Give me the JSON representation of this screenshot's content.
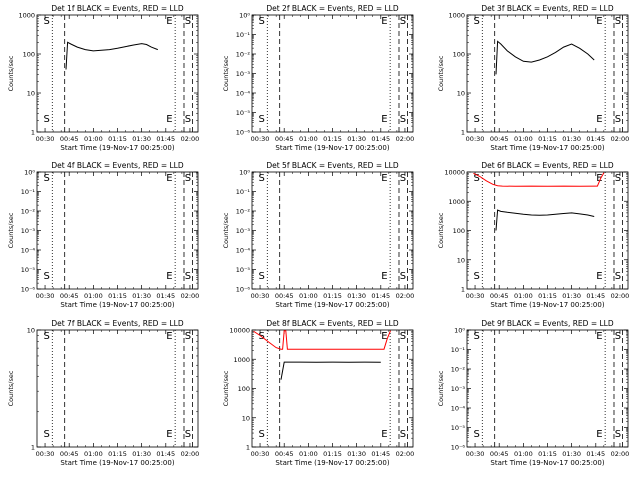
{
  "chart_data": [
    {
      "type": "line",
      "title": "Det 1f BLACK = Events, RED = LLD",
      "ylabel": "Counts/sec",
      "xlabel": "Start Time (19-Nov-17 00:25:00)",
      "x_tick_labels": [
        "00:30",
        "00:45",
        "01:00",
        "01:15",
        "01:30",
        "01:45",
        "02:00"
      ],
      "y_scale": "log",
      "ylim": [
        1,
        1000
      ],
      "y_tick_labels": [
        "1",
        "10",
        "100",
        "1000"
      ],
      "markers": [
        "S",
        "E",
        "S"
      ],
      "series": [
        {
          "color": "#000000",
          "x": [
            "00:43",
            "00:44",
            "00:46",
            "00:50",
            "00:55",
            "01:00",
            "01:05",
            "01:10",
            "01:15",
            "01:20",
            "01:25",
            "01:30",
            "01:33",
            "01:36",
            "01:40"
          ],
          "y": [
            40,
            200,
            180,
            150,
            130,
            120,
            125,
            130,
            140,
            155,
            170,
            185,
            175,
            150,
            130
          ]
        }
      ]
    },
    {
      "type": "line",
      "title": "Det 2f BLACK = Events, RED = LLD",
      "ylabel": "Counts/sec",
      "xlabel": "Start Time (19-Nov-17 00:25:00)",
      "x_tick_labels": [
        "00:30",
        "00:45",
        "01:00",
        "01:15",
        "01:30",
        "01:45",
        "02:00"
      ],
      "y_scale": "log",
      "ylim": [
        1e-06,
        1
      ],
      "y_tick_labels": [
        "10⁰",
        "10⁻¹",
        "10⁻²",
        "10⁻³",
        "10⁻⁴",
        "10⁻⁵",
        "10⁻⁶"
      ],
      "markers": [
        "S",
        "E",
        "S"
      ],
      "series": []
    },
    {
      "type": "line",
      "title": "Det 3f BLACK = Events, RED = LLD",
      "ylabel": "Counts/sec",
      "xlabel": "Start Time (19-Nov-17 00:25:00)",
      "x_tick_labels": [
        "00:30",
        "00:45",
        "01:00",
        "01:15",
        "01:30",
        "01:45",
        "02:00"
      ],
      "y_scale": "log",
      "ylim": [
        1,
        1000
      ],
      "y_tick_labels": [
        "1",
        "10",
        "100",
        "1000"
      ],
      "markers": [
        "S",
        "E",
        "S"
      ],
      "series": [
        {
          "color": "#000000",
          "x": [
            "00:43",
            "00:44",
            "00:46",
            "00:50",
            "00:55",
            "01:00",
            "01:05",
            "01:10",
            "01:15",
            "01:20",
            "01:25",
            "01:30",
            "01:35",
            "01:40",
            "01:44"
          ],
          "y": [
            30,
            210,
            180,
            120,
            85,
            65,
            62,
            70,
            85,
            110,
            150,
            180,
            140,
            100,
            70
          ]
        }
      ]
    },
    {
      "type": "line",
      "title": "Det 4f BLACK = Events, RED = LLD",
      "ylabel": "Counts/sec",
      "xlabel": "Start Time (19-Nov-17 00:25:00)",
      "x_tick_labels": [
        "00:30",
        "00:45",
        "01:00",
        "01:15",
        "01:30",
        "01:45",
        "02:00"
      ],
      "y_scale": "log",
      "ylim": [
        1e-06,
        1
      ],
      "y_tick_labels": [
        "10⁰",
        "10⁻¹",
        "10⁻²",
        "10⁻³",
        "10⁻⁴",
        "10⁻⁵",
        "10⁻⁶"
      ],
      "markers": [
        "S",
        "E",
        "S"
      ],
      "series": []
    },
    {
      "type": "line",
      "title": "Det 5f BLACK = Events, RED = LLD",
      "ylabel": "Counts/sec",
      "xlabel": "Start Time (19-Nov-17 00:25:00)",
      "x_tick_labels": [
        "00:30",
        "00:45",
        "01:00",
        "01:15",
        "01:30",
        "01:45",
        "02:00"
      ],
      "y_scale": "log",
      "ylim": [
        1e-06,
        1
      ],
      "y_tick_labels": [
        "10⁰",
        "10⁻¹",
        "10⁻²",
        "10⁻³",
        "10⁻⁴",
        "10⁻⁵",
        "10⁻⁶"
      ],
      "markers": [
        "S",
        "E",
        "S"
      ],
      "series": []
    },
    {
      "type": "line",
      "title": "Det 6f BLACK = Events, RED = LLD",
      "ylabel": "Counts/sec",
      "xlabel": "Start Time (19-Nov-17 00:25:00)",
      "x_tick_labels": [
        "00:30",
        "00:45",
        "01:00",
        "01:15",
        "01:30",
        "01:45",
        "02:00"
      ],
      "y_scale": "log",
      "ylim": [
        1,
        10000
      ],
      "y_tick_labels": [
        "1",
        "10",
        "100",
        "1000",
        "10000"
      ],
      "markers": [
        "S",
        "E",
        "S"
      ],
      "series": [
        {
          "color": "#ff0000",
          "x": [
            "00:29",
            "00:33",
            "00:37",
            "00:41",
            "00:44",
            "00:47",
            "00:55",
            "01:05",
            "01:15",
            "01:25",
            "01:35",
            "01:45",
            "01:46",
            "01:48",
            "01:50"
          ],
          "y": [
            9000,
            7000,
            5000,
            3800,
            3400,
            3300,
            3250,
            3300,
            3250,
            3300,
            3250,
            3300,
            3300,
            6000,
            9500
          ]
        },
        {
          "color": "#000000",
          "x": [
            "00:43",
            "00:44",
            "00:46",
            "00:50",
            "00:55",
            "01:00",
            "01:05",
            "01:10",
            "01:15",
            "01:20",
            "01:25",
            "01:30",
            "01:35",
            "01:40",
            "01:44"
          ],
          "y": [
            100,
            500,
            450,
            420,
            390,
            360,
            340,
            330,
            340,
            360,
            380,
            400,
            370,
            340,
            300
          ]
        }
      ]
    },
    {
      "type": "line",
      "title": "Det 7f BLACK = Events, RED = LLD",
      "ylabel": "Counts/sec",
      "xlabel": "Start Time (19-Nov-17 00:25:00)",
      "x_tick_labels": [
        "00:30",
        "00:45",
        "01:00",
        "01:15",
        "01:30",
        "01:45",
        "02:00"
      ],
      "y_scale": "log",
      "ylim": [
        1,
        10
      ],
      "y_tick_labels": [
        "1",
        "10"
      ],
      "markers": [
        "S",
        "E",
        "S"
      ],
      "series": []
    },
    {
      "type": "line",
      "title": "Det 8f BLACK = Events, RED = LLD",
      "ylabel": "Counts/sec",
      "xlabel": "Start Time (19-Nov-17 00:25:00)",
      "x_tick_labels": [
        "00:30",
        "00:45",
        "01:00",
        "01:15",
        "01:30",
        "01:45",
        "02:00"
      ],
      "y_scale": "log",
      "ylim": [
        1,
        10000
      ],
      "y_tick_labels": [
        "1",
        "10",
        "100",
        "1000",
        "10000"
      ],
      "markers": [
        "S",
        "E",
        "S"
      ],
      "series": [
        {
          "color": "#ff0000",
          "x": [
            "00:26",
            "00:30",
            "00:35",
            "00:40",
            "00:43",
            "00:44",
            "00:45",
            "00:46",
            "00:47",
            "00:55",
            "01:05",
            "01:15",
            "01:25",
            "01:35",
            "01:45",
            "01:47",
            "01:49",
            "01:51"
          ],
          "y": [
            9000,
            6500,
            4000,
            2500,
            2200,
            2200,
            9500,
            9500,
            2200,
            2200,
            2200,
            2200,
            2200,
            2200,
            2200,
            2200,
            5000,
            9500
          ]
        },
        {
          "color": "#000000",
          "x": [
            "00:43",
            "00:44",
            "00:45",
            "00:46",
            "00:48",
            "00:55",
            "01:05",
            "01:15",
            "01:25",
            "01:35",
            "01:45"
          ],
          "y": [
            200,
            400,
            800,
            800,
            800,
            800,
            790,
            800,
            790,
            800,
            790
          ]
        }
      ]
    },
    {
      "type": "line",
      "title": "Det 9f BLACK = Events, RED = LLD",
      "ylabel": "Counts/sec",
      "xlabel": "Start Time (19-Nov-17 00:25:00)",
      "x_tick_labels": [
        "00:30",
        "00:45",
        "01:00",
        "01:15",
        "01:30",
        "01:45",
        "02:00"
      ],
      "y_scale": "log",
      "ylim": [
        1e-06,
        1
      ],
      "y_tick_labels": [
        "10⁰",
        "10⁻¹",
        "10⁻²",
        "10⁻³",
        "10⁻⁴",
        "10⁻⁵",
        "10⁻⁶"
      ],
      "markers": [
        "S",
        "E",
        "S"
      ],
      "series": []
    }
  ]
}
